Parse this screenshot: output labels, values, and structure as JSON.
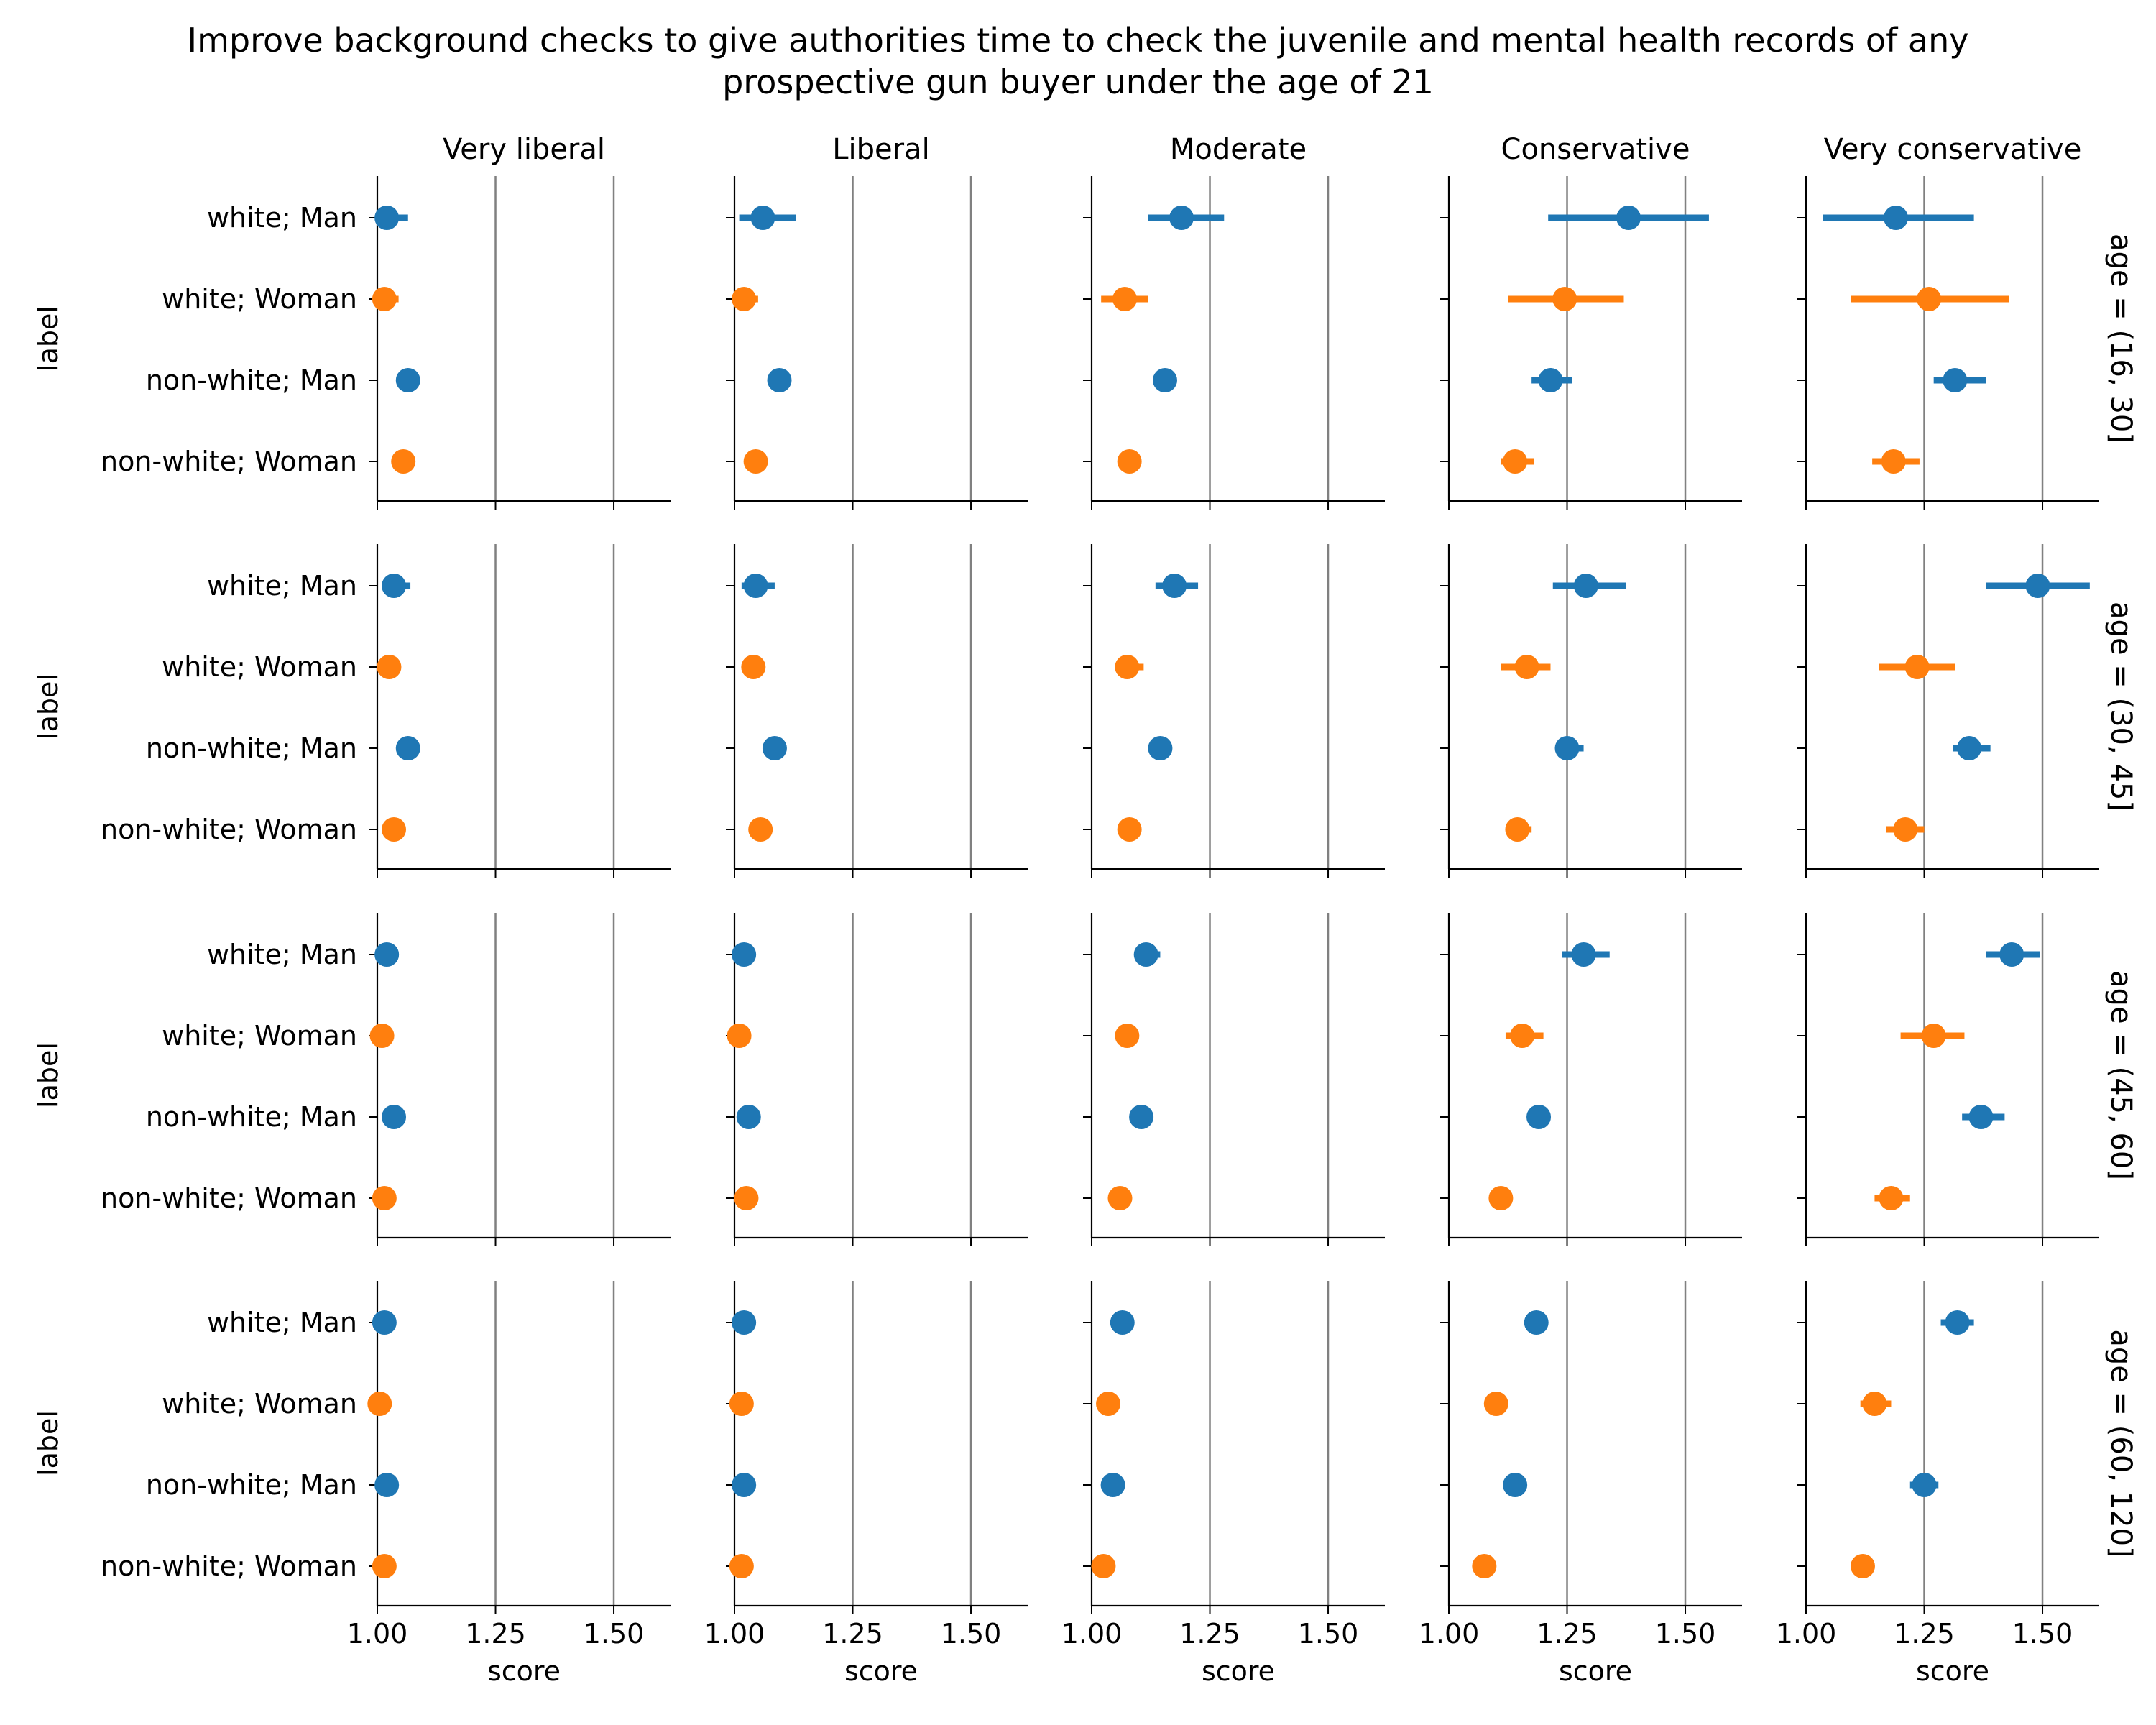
{
  "title_lines": [
    "Improve background checks to give authorities time to check the juvenile and mental health records of any",
    "prospective gun buyer under the age of 21"
  ],
  "colors": {
    "Man": "#1f77b4",
    "Woman": "#ff7f0e",
    "refline": "#808080",
    "axis": "#000000"
  },
  "chart_data": {
    "type": "scatter",
    "subtype": "point-range facet grid",
    "xlabel": "score",
    "ylabel": "label",
    "xlim": [
      1.0,
      1.62
    ],
    "xticks": [
      1.0,
      1.25,
      1.5
    ],
    "xtick_labels": [
      "1.00",
      "1.25",
      "1.50"
    ],
    "reference_lines": [
      1.25,
      1.5
    ],
    "columns": [
      "Very liberal",
      "Liberal",
      "Moderate",
      "Conservative",
      "Very conservative"
    ],
    "rows": [
      "age = (16, 30]",
      "age = (30, 45]",
      "age = (45, 60]",
      "age = (60, 120]"
    ],
    "categories": [
      "white; Man",
      "white; Woman",
      "non-white; Man",
      "non-white; Woman"
    ],
    "category_gender": [
      "Man",
      "Woman",
      "Man",
      "Woman"
    ],
    "panels": [
      [
        {
          "points": [
            {
              "v": 1.02,
              "lo": 1.01,
              "hi": 1.065
            },
            {
              "v": 1.015,
              "lo": 1.01,
              "hi": 1.045
            },
            {
              "v": 1.065,
              "lo": 1.055,
              "hi": 1.075
            },
            {
              "v": 1.055,
              "lo": 1.05,
              "hi": 1.065
            }
          ]
        },
        {
          "points": [
            {
              "v": 1.06,
              "lo": 1.01,
              "hi": 1.13
            },
            {
              "v": 1.02,
              "lo": 1.01,
              "hi": 1.05
            },
            {
              "v": 1.095,
              "lo": 1.085,
              "hi": 1.11
            },
            {
              "v": 1.045,
              "lo": 1.04,
              "hi": 1.055
            }
          ]
        },
        {
          "points": [
            {
              "v": 1.19,
              "lo": 1.12,
              "hi": 1.28
            },
            {
              "v": 1.07,
              "lo": 1.02,
              "hi": 1.12
            },
            {
              "v": 1.155,
              "lo": 1.145,
              "hi": 1.165
            },
            {
              "v": 1.08,
              "lo": 1.075,
              "hi": 1.09
            }
          ]
        },
        {
          "points": [
            {
              "v": 1.38,
              "lo": 1.21,
              "hi": 1.55
            },
            {
              "v": 1.245,
              "lo": 1.125,
              "hi": 1.37
            },
            {
              "v": 1.215,
              "lo": 1.175,
              "hi": 1.26
            },
            {
              "v": 1.14,
              "lo": 1.11,
              "hi": 1.18
            }
          ]
        },
        {
          "points": [
            {
              "v": 1.19,
              "lo": 1.035,
              "hi": 1.355
            },
            {
              "v": 1.26,
              "lo": 1.095,
              "hi": 1.43
            },
            {
              "v": 1.315,
              "lo": 1.27,
              "hi": 1.38
            },
            {
              "v": 1.185,
              "lo": 1.14,
              "hi": 1.24
            }
          ]
        }
      ],
      [
        {
          "points": [
            {
              "v": 1.035,
              "lo": 1.01,
              "hi": 1.07
            },
            {
              "v": 1.025,
              "lo": 1.02,
              "hi": 1.035
            },
            {
              "v": 1.065,
              "lo": 1.06,
              "hi": 1.07
            },
            {
              "v": 1.035,
              "lo": 1.03,
              "hi": 1.04
            }
          ]
        },
        {
          "points": [
            {
              "v": 1.045,
              "lo": 1.015,
              "hi": 1.085
            },
            {
              "v": 1.04,
              "lo": 1.025,
              "hi": 1.065
            },
            {
              "v": 1.085,
              "lo": 1.08,
              "hi": 1.09
            },
            {
              "v": 1.055,
              "lo": 1.05,
              "hi": 1.06
            }
          ]
        },
        {
          "points": [
            {
              "v": 1.175,
              "lo": 1.135,
              "hi": 1.225
            },
            {
              "v": 1.075,
              "lo": 1.05,
              "hi": 1.11
            },
            {
              "v": 1.145,
              "lo": 1.14,
              "hi": 1.15
            },
            {
              "v": 1.08,
              "lo": 1.075,
              "hi": 1.09
            }
          ]
        },
        {
          "points": [
            {
              "v": 1.29,
              "lo": 1.22,
              "hi": 1.375
            },
            {
              "v": 1.165,
              "lo": 1.11,
              "hi": 1.215
            },
            {
              "v": 1.25,
              "lo": 1.225,
              "hi": 1.285
            },
            {
              "v": 1.145,
              "lo": 1.125,
              "hi": 1.175
            }
          ]
        },
        {
          "points": [
            {
              "v": 1.49,
              "lo": 1.38,
              "hi": 1.6
            },
            {
              "v": 1.235,
              "lo": 1.155,
              "hi": 1.315
            },
            {
              "v": 1.345,
              "lo": 1.31,
              "hi": 1.39
            },
            {
              "v": 1.21,
              "lo": 1.17,
              "hi": 1.25
            }
          ]
        }
      ],
      [
        {
          "points": [
            {
              "v": 1.02,
              "lo": 1.01,
              "hi": 1.045
            },
            {
              "v": 1.01,
              "lo": 1.005,
              "hi": 1.015
            },
            {
              "v": 1.035,
              "lo": 1.03,
              "hi": 1.04
            },
            {
              "v": 1.015,
              "lo": 1.01,
              "hi": 1.02
            }
          ]
        },
        {
          "points": [
            {
              "v": 1.02,
              "lo": 1.015,
              "hi": 1.025
            },
            {
              "v": 1.01,
              "lo": 1.005,
              "hi": 1.015
            },
            {
              "v": 1.03,
              "lo": 1.025,
              "hi": 1.035
            },
            {
              "v": 1.025,
              "lo": 1.02,
              "hi": 1.03
            }
          ]
        },
        {
          "points": [
            {
              "v": 1.115,
              "lo": 1.095,
              "hi": 1.145
            },
            {
              "v": 1.075,
              "lo": 1.06,
              "hi": 1.095
            },
            {
              "v": 1.105,
              "lo": 1.1,
              "hi": 1.11
            },
            {
              "v": 1.06,
              "lo": 1.055,
              "hi": 1.065
            }
          ]
        },
        {
          "points": [
            {
              "v": 1.285,
              "lo": 1.24,
              "hi": 1.34
            },
            {
              "v": 1.155,
              "lo": 1.12,
              "hi": 1.2
            },
            {
              "v": 1.19,
              "lo": 1.165,
              "hi": 1.215
            },
            {
              "v": 1.11,
              "lo": 1.105,
              "hi": 1.115
            }
          ]
        },
        {
          "points": [
            {
              "v": 1.435,
              "lo": 1.38,
              "hi": 1.495
            },
            {
              "v": 1.27,
              "lo": 1.2,
              "hi": 1.335
            },
            {
              "v": 1.37,
              "lo": 1.33,
              "hi": 1.42
            },
            {
              "v": 1.18,
              "lo": 1.145,
              "hi": 1.22
            }
          ]
        }
      ],
      [
        {
          "points": [
            {
              "v": 1.015,
              "lo": 1.01,
              "hi": 1.02
            },
            {
              "v": 1.005,
              "lo": 1.0,
              "hi": 1.01
            },
            {
              "v": 1.02,
              "lo": 1.015,
              "hi": 1.025
            },
            {
              "v": 1.015,
              "lo": 1.01,
              "hi": 1.02
            }
          ]
        },
        {
          "points": [
            {
              "v": 1.02,
              "lo": 1.015,
              "hi": 1.025
            },
            {
              "v": 1.015,
              "lo": 1.01,
              "hi": 1.02
            },
            {
              "v": 1.02,
              "lo": 1.015,
              "hi": 1.025
            },
            {
              "v": 1.015,
              "lo": 1.01,
              "hi": 1.02
            }
          ]
        },
        {
          "points": [
            {
              "v": 1.065,
              "lo": 1.06,
              "hi": 1.07
            },
            {
              "v": 1.035,
              "lo": 1.03,
              "hi": 1.04
            },
            {
              "v": 1.045,
              "lo": 1.04,
              "hi": 1.05
            },
            {
              "v": 1.025,
              "lo": 1.02,
              "hi": 1.03
            }
          ]
        },
        {
          "points": [
            {
              "v": 1.185,
              "lo": 1.17,
              "hi": 1.2
            },
            {
              "v": 1.1,
              "lo": 1.09,
              "hi": 1.11
            },
            {
              "v": 1.14,
              "lo": 1.135,
              "hi": 1.145
            },
            {
              "v": 1.075,
              "lo": 1.07,
              "hi": 1.08
            }
          ]
        },
        {
          "points": [
            {
              "v": 1.32,
              "lo": 1.285,
              "hi": 1.355
            },
            {
              "v": 1.145,
              "lo": 1.115,
              "hi": 1.18
            },
            {
              "v": 1.25,
              "lo": 1.22,
              "hi": 1.28
            },
            {
              "v": 1.12,
              "lo": 1.1,
              "hi": 1.14
            }
          ]
        }
      ]
    ]
  }
}
